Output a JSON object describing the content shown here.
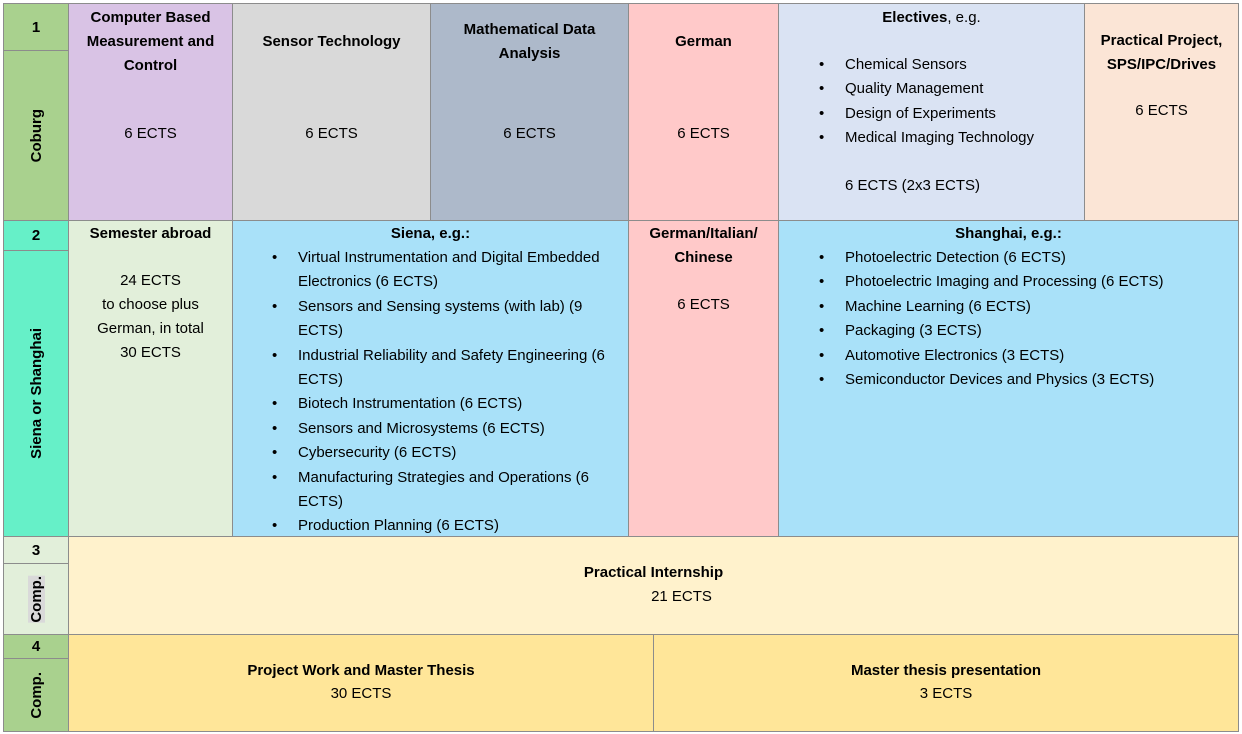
{
  "rows": [
    {
      "number": "1",
      "label": "Coburg",
      "cells": [
        {
          "title": "Computer Based Measurement and Control",
          "ects": "6 ECTS"
        },
        {
          "title": "Sensor Technology",
          "ects": "6 ECTS"
        },
        {
          "title": "Mathematical Data Analysis",
          "ects": "6 ECTS"
        },
        {
          "title": "German",
          "ects": "6 ECTS"
        },
        {
          "title": "Electives",
          "title_suffix": ", e.g.",
          "items": [
            "Chemical Sensors",
            "Quality Management",
            "Design of Experiments",
            "Medical Imaging Technology"
          ],
          "ects": "6 ECTS (2x3 ECTS)"
        },
        {
          "title": "Practical Project, SPS/IPC/Drives",
          "ects": "6 ECTS"
        }
      ]
    },
    {
      "number": "2",
      "label": "Siena or Shanghai",
      "cells": [
        {
          "title": "Semester abroad",
          "text": [
            "24 ECTS",
            "to choose plus",
            "German, in total",
            "30 ECTS"
          ]
        },
        {
          "title": "Siena, e.g.:",
          "items": [
            "Virtual Instrumentation and Digital Embedded Electronics (6 ECTS)",
            "Sensors and Sensing systems (with lab) (9 ECTS)",
            "Industrial Reliability and Safety Engineering (6 ECTS)",
            "Biotech Instrumentation (6 ECTS)",
            "Sensors and Microsystems (6 ECTS)",
            "Cybersecurity (6 ECTS)",
            "Manufacturing Strategies and Operations (6 ECTS)",
            "Production Planning (6 ECTS)"
          ]
        },
        {
          "title": "German/Italian/ Chinese",
          "ects": "6 ECTS"
        },
        {
          "title": "Shanghai, e.g.:",
          "items": [
            "Photoelectric Detection (6 ECTS)",
            "Photoelectric Imaging and Processing (6 ECTS)",
            "Machine Learning (6 ECTS)",
            "Packaging (3 ECTS)",
            "Automotive Electronics (3 ECTS)",
            "Semiconductor Devices and Physics (3 ECTS)"
          ]
        }
      ]
    },
    {
      "number": "3",
      "label": "Comp.",
      "cells": [
        {
          "title": "Practical Internship",
          "ects": "21 ECTS"
        }
      ]
    },
    {
      "number": "4",
      "label": "Comp.",
      "cells": [
        {
          "title": "Project Work and Master Thesis",
          "ects": "30 ECTS"
        },
        {
          "title": "Master thesis presentation",
          "ects": "3 ECTS"
        }
      ]
    }
  ]
}
